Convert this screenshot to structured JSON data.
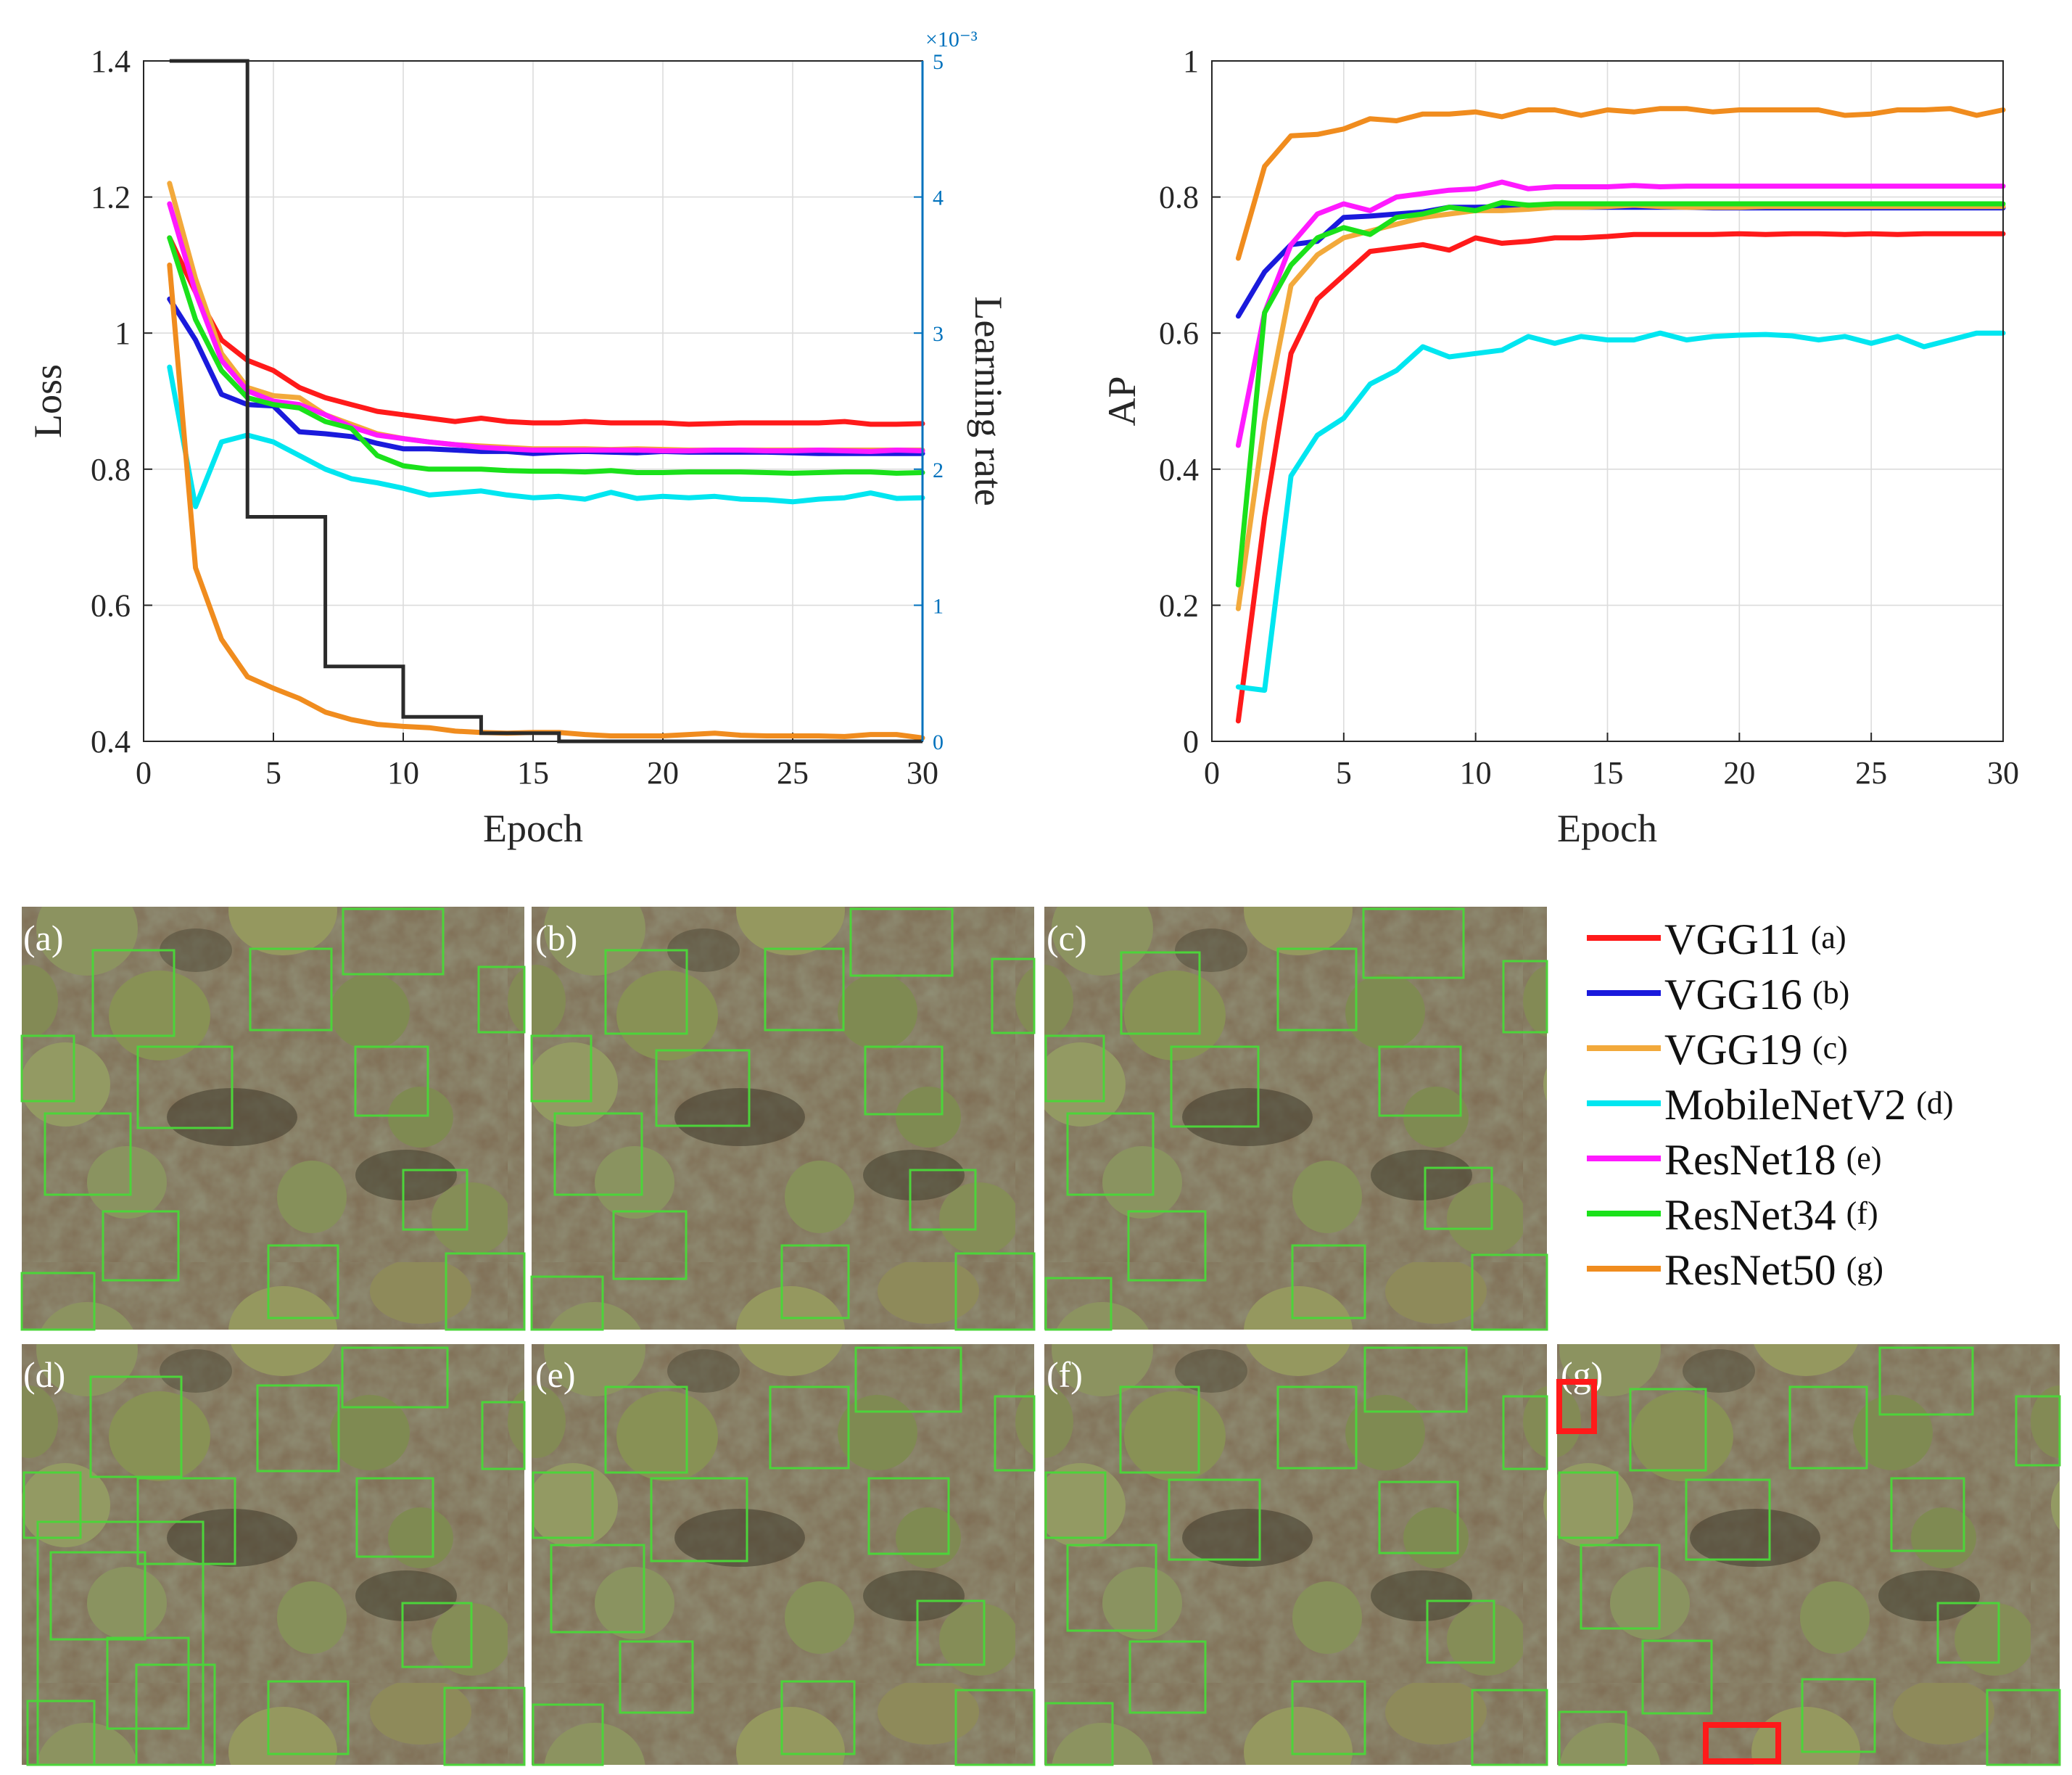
{
  "chart_data": [
    {
      "type": "line",
      "title": "",
      "xlabel": "Epoch",
      "ylabel": "Loss",
      "y2label": "Learning rate",
      "xlim": [
        0,
        30
      ],
      "ylim": [
        0.4,
        1.4
      ],
      "y2lim": [
        0,
        5
      ],
      "x_ticks": [
        "0",
        "5",
        "10",
        "15",
        "20",
        "25",
        "30"
      ],
      "y_ticks": [
        "0.4",
        "0.6",
        "0.8",
        "1",
        "1.2",
        "1.4"
      ],
      "y2_ticks": [
        "0",
        "1",
        "2",
        "3",
        "4",
        "5"
      ],
      "y2_exponent": "×10⁻³",
      "grid": true,
      "x": [
        1,
        2,
        3,
        4,
        5,
        6,
        7,
        8,
        9,
        10,
        11,
        12,
        13,
        14,
        15,
        16,
        17,
        18,
        19,
        20,
        21,
        22,
        23,
        24,
        25,
        26,
        27,
        28,
        29,
        30
      ],
      "series": [
        {
          "name": "VGG11",
          "color": "#ff1a1a",
          "values": [
            1.14,
            1.06,
            0.99,
            0.96,
            0.945,
            0.92,
            0.905,
            0.895,
            0.885,
            0.88,
            0.875,
            0.87,
            0.875,
            0.87,
            0.868,
            0.868,
            0.87,
            0.868,
            0.868,
            0.868,
            0.866,
            0.867,
            0.868,
            0.868,
            0.868,
            0.868,
            0.87,
            0.866,
            0.866,
            0.867
          ]
        },
        {
          "name": "VGG16",
          "color": "#1a1adc",
          "values": [
            1.05,
            0.99,
            0.91,
            0.895,
            0.893,
            0.855,
            0.852,
            0.848,
            0.838,
            0.83,
            0.83,
            0.828,
            0.826,
            0.826,
            0.823,
            0.825,
            0.826,
            0.825,
            0.824,
            0.826,
            0.825,
            0.825,
            0.825,
            0.825,
            0.824,
            0.823,
            0.823,
            0.823,
            0.823,
            0.823
          ]
        },
        {
          "name": "VGG19",
          "color": "#f2a93b",
          "values": [
            1.22,
            1.08,
            0.97,
            0.92,
            0.908,
            0.905,
            0.88,
            0.866,
            0.852,
            0.845,
            0.84,
            0.836,
            0.834,
            0.832,
            0.83,
            0.83,
            0.83,
            0.829,
            0.83,
            0.829,
            0.828,
            0.828,
            0.828,
            0.828,
            0.828,
            0.828,
            0.828,
            0.828,
            0.828,
            0.828
          ]
        },
        {
          "name": "MobileNetV2",
          "color": "#00e6f0",
          "values": [
            0.95,
            0.745,
            0.84,
            0.85,
            0.84,
            0.82,
            0.8,
            0.786,
            0.78,
            0.772,
            0.762,
            0.765,
            0.768,
            0.762,
            0.758,
            0.76,
            0.756,
            0.766,
            0.757,
            0.76,
            0.758,
            0.76,
            0.756,
            0.755,
            0.752,
            0.756,
            0.758,
            0.765,
            0.757,
            0.758
          ]
        },
        {
          "name": "ResNet18",
          "color": "#ff1aff",
          "values": [
            1.19,
            1.06,
            0.96,
            0.915,
            0.9,
            0.895,
            0.88,
            0.862,
            0.85,
            0.845,
            0.84,
            0.836,
            0.832,
            0.83,
            0.828,
            0.828,
            0.828,
            0.828,
            0.828,
            0.827,
            0.827,
            0.828,
            0.828,
            0.827,
            0.827,
            0.828,
            0.827,
            0.826,
            0.828,
            0.827
          ]
        },
        {
          "name": "ResNet34",
          "color": "#1ae11a",
          "values": [
            1.14,
            1.02,
            0.945,
            0.905,
            0.895,
            0.89,
            0.87,
            0.86,
            0.82,
            0.805,
            0.8,
            0.8,
            0.8,
            0.798,
            0.797,
            0.797,
            0.796,
            0.798,
            0.795,
            0.795,
            0.796,
            0.796,
            0.796,
            0.795,
            0.794,
            0.795,
            0.796,
            0.796,
            0.794,
            0.795
          ]
        },
        {
          "name": "ResNet50",
          "color": "#f08c1e",
          "values": [
            1.1,
            0.655,
            0.55,
            0.495,
            0.478,
            0.463,
            0.443,
            0.432,
            0.425,
            0.422,
            0.42,
            0.415,
            0.413,
            0.412,
            0.413,
            0.413,
            0.41,
            0.408,
            0.408,
            0.408,
            0.41,
            0.412,
            0.409,
            0.408,
            0.408,
            0.408,
            0.407,
            0.41,
            0.41,
            0.405
          ]
        },
        {
          "name": "Learning rate (×10⁻³)",
          "color": "#2b2b2b",
          "axis": "right",
          "step": true,
          "x": [
            1,
            3,
            3,
            4,
            4,
            6,
            6,
            7,
            7,
            9,
            9,
            10,
            10,
            12,
            12,
            13,
            13,
            15,
            15,
            16,
            16,
            30
          ],
          "values": [
            5,
            5,
            5,
            5,
            1.65,
            1.65,
            1.65,
            1.65,
            0.55,
            0.55,
            0.55,
            0.55,
            0.18,
            0.18,
            0.18,
            0.18,
            0.06,
            0.06,
            0.06,
            0.06,
            0.0,
            0.0
          ]
        }
      ]
    },
    {
      "type": "line",
      "title": "",
      "xlabel": "Epoch",
      "ylabel": "AP",
      "xlim": [
        0,
        30
      ],
      "ylim": [
        0,
        1
      ],
      "x_ticks": [
        "0",
        "5",
        "10",
        "15",
        "20",
        "25",
        "30"
      ],
      "y_ticks": [
        "0",
        "0.2",
        "0.4",
        "0.6",
        "0.8",
        "1"
      ],
      "grid": true,
      "x": [
        1,
        2,
        3,
        4,
        5,
        6,
        7,
        8,
        9,
        10,
        11,
        12,
        13,
        14,
        15,
        16,
        17,
        18,
        19,
        20,
        21,
        22,
        23,
        24,
        25,
        26,
        27,
        28,
        29,
        30
      ],
      "series": [
        {
          "name": "VGG11",
          "color": "#ff1a1a",
          "values": [
            0.03,
            0.33,
            0.57,
            0.65,
            0.685,
            0.72,
            0.725,
            0.73,
            0.722,
            0.74,
            0.732,
            0.735,
            0.74,
            0.74,
            0.742,
            0.745,
            0.745,
            0.745,
            0.745,
            0.746,
            0.745,
            0.746,
            0.746,
            0.745,
            0.746,
            0.745,
            0.746,
            0.746,
            0.746,
            0.746
          ]
        },
        {
          "name": "VGG16",
          "color": "#1a1adc",
          "values": [
            0.625,
            0.69,
            0.73,
            0.735,
            0.77,
            0.772,
            0.775,
            0.778,
            0.785,
            0.785,
            0.786,
            0.788,
            0.785,
            0.785,
            0.785,
            0.785,
            0.785,
            0.785,
            0.784,
            0.784,
            0.784,
            0.784,
            0.784,
            0.784,
            0.784,
            0.784,
            0.784,
            0.784,
            0.784,
            0.784
          ]
        },
        {
          "name": "VGG19",
          "color": "#f2a93b",
          "values": [
            0.195,
            0.47,
            0.67,
            0.715,
            0.74,
            0.75,
            0.76,
            0.77,
            0.775,
            0.78,
            0.78,
            0.782,
            0.785,
            0.785,
            0.786,
            0.788,
            0.786,
            0.785,
            0.785,
            0.785,
            0.786,
            0.786,
            0.786,
            0.786,
            0.786,
            0.786,
            0.786,
            0.786,
            0.786,
            0.786
          ]
        },
        {
          "name": "MobileNetV2",
          "color": "#00e6f0",
          "values": [
            0.08,
            0.075,
            0.39,
            0.45,
            0.475,
            0.525,
            0.545,
            0.58,
            0.565,
            0.57,
            0.575,
            0.595,
            0.585,
            0.595,
            0.59,
            0.59,
            0.6,
            0.59,
            0.595,
            0.597,
            0.598,
            0.596,
            0.59,
            0.595,
            0.585,
            0.595,
            0.58,
            0.59,
            0.6,
            0.6
          ]
        },
        {
          "name": "ResNet18",
          "color": "#ff1aff",
          "values": [
            0.435,
            0.63,
            0.73,
            0.775,
            0.79,
            0.78,
            0.8,
            0.805,
            0.81,
            0.812,
            0.822,
            0.812,
            0.815,
            0.815,
            0.815,
            0.817,
            0.815,
            0.816,
            0.816,
            0.816,
            0.816,
            0.816,
            0.816,
            0.816,
            0.816,
            0.816,
            0.816,
            0.816,
            0.816,
            0.816
          ]
        },
        {
          "name": "ResNet34",
          "color": "#1ae11a",
          "values": [
            0.23,
            0.63,
            0.7,
            0.74,
            0.755,
            0.745,
            0.77,
            0.775,
            0.785,
            0.78,
            0.792,
            0.788,
            0.79,
            0.79,
            0.79,
            0.79,
            0.79,
            0.79,
            0.79,
            0.79,
            0.79,
            0.79,
            0.79,
            0.79,
            0.79,
            0.79,
            0.79,
            0.79,
            0.79,
            0.79
          ]
        },
        {
          "name": "ResNet50",
          "color": "#f08c1e",
          "values": [
            0.71,
            0.845,
            0.89,
            0.892,
            0.9,
            0.915,
            0.912,
            0.922,
            0.922,
            0.925,
            0.918,
            0.928,
            0.928,
            0.92,
            0.928,
            0.925,
            0.93,
            0.93,
            0.925,
            0.928,
            0.928,
            0.928,
            0.928,
            0.92,
            0.922,
            0.928,
            0.928,
            0.93,
            0.92,
            0.928
          ]
        }
      ]
    }
  ],
  "legend": {
    "items": [
      {
        "name": "VGG11",
        "tag": "(a)",
        "color": "#ff1a1a"
      },
      {
        "name": "VGG16",
        "tag": "(b)",
        "color": "#1a1adc"
      },
      {
        "name": "VGG19",
        "tag": "(c)",
        "color": "#f2a93b"
      },
      {
        "name": "MobileNetV2",
        "tag": "(d)",
        "color": "#00e6f0"
      },
      {
        "name": "ResNet18",
        "tag": "(e)",
        "color": "#ff1aff"
      },
      {
        "name": "ResNet34",
        "tag": "(f)",
        "color": "#1ae11a"
      },
      {
        "name": "ResNet50",
        "tag": "(g)",
        "color": "#f08c1e"
      }
    ]
  },
  "panels": [
    {
      "label": "(a)",
      "model": "VGG11",
      "false_detections": 0
    },
    {
      "label": "(b)",
      "model": "VGG16",
      "false_detections": 0
    },
    {
      "label": "(c)",
      "model": "VGG19",
      "false_detections": 0
    },
    {
      "label": "(d)",
      "model": "MobileNetV2",
      "false_detections": 0
    },
    {
      "label": "(e)",
      "model": "ResNet18",
      "false_detections": 0
    },
    {
      "label": "(f)",
      "model": "ResNet34",
      "false_detections": 0
    },
    {
      "label": "(g)",
      "model": "ResNet50",
      "false_detections": 2
    }
  ],
  "colors": {
    "detection_box": "#4cd43a",
    "error_box": "#ff1a1a",
    "right_axis": "#0072bd",
    "lr_line": "#2b2b2b"
  }
}
